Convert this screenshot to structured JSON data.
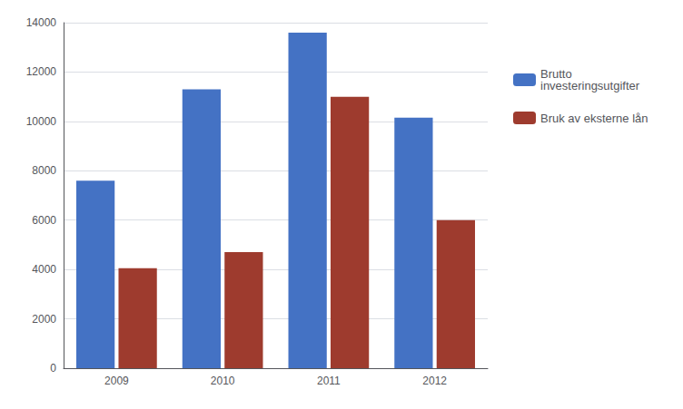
{
  "chart_data": {
    "type": "bar",
    "categories": [
      "2009",
      "2010",
      "2011",
      "2012"
    ],
    "series": [
      {
        "name": "Brutto\ninvesteringsutgifter",
        "color": "#4472C4",
        "values": [
          7600,
          11300,
          13600,
          10150
        ]
      },
      {
        "name": "Bruk av eksterne lån",
        "color": "#9E3B2E",
        "values": [
          4050,
          4700,
          11000,
          6000
        ]
      }
    ],
    "ylim": [
      0,
      14000
    ],
    "yticks": [
      0,
      2000,
      4000,
      6000,
      8000,
      10000,
      12000,
      14000
    ],
    "grid": true,
    "legend": "right"
  }
}
